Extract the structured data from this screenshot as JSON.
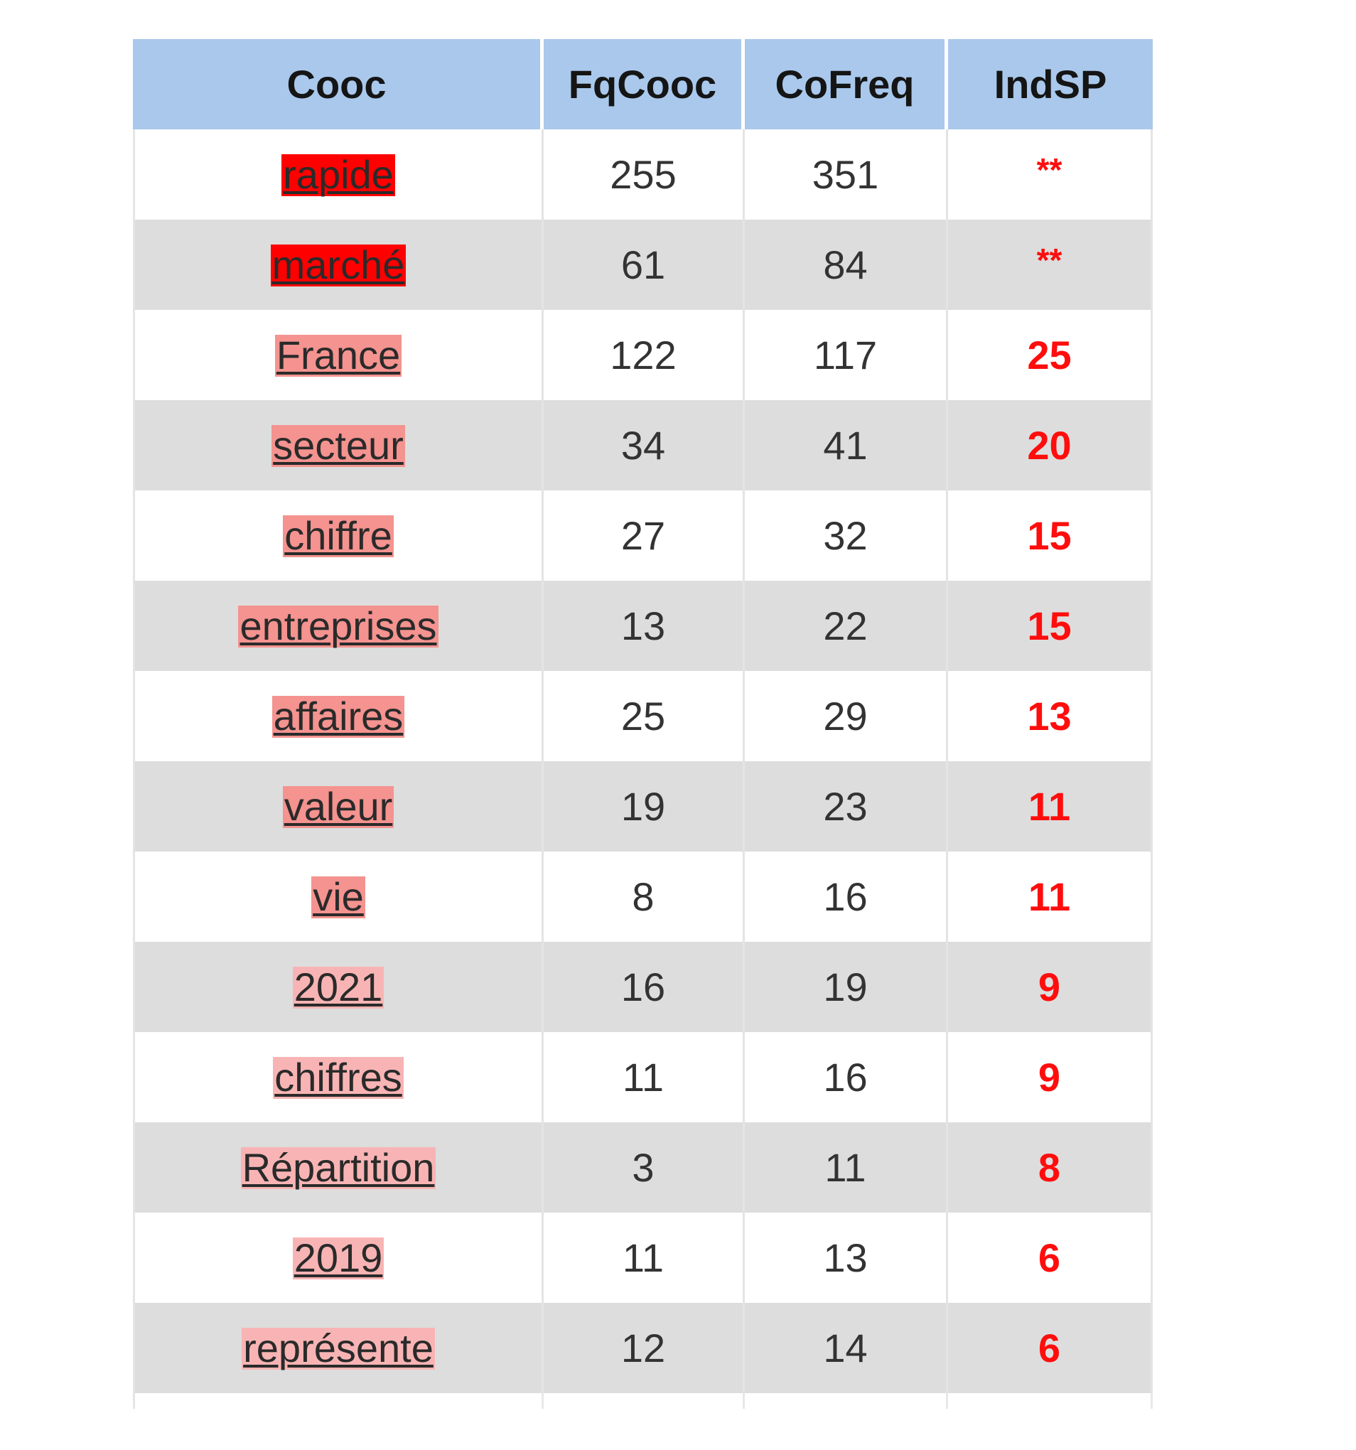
{
  "table": {
    "headers": [
      "Cooc",
      "FqCooc",
      "CoFreq",
      "IndSP"
    ],
    "rows": [
      {
        "cooc": "rapide",
        "fqcooc": "255",
        "cofreq": "351",
        "indsp": "**",
        "highlight": "#ff0000"
      },
      {
        "cooc": "marché",
        "fqcooc": "61",
        "cofreq": "84",
        "indsp": "**",
        "highlight": "#ff0000"
      },
      {
        "cooc": "France",
        "fqcooc": "122",
        "cofreq": "117",
        "indsp": "25",
        "highlight": "#f4938f"
      },
      {
        "cooc": "secteur",
        "fqcooc": "34",
        "cofreq": "41",
        "indsp": "20",
        "highlight": "#f4938f"
      },
      {
        "cooc": "chiffre",
        "fqcooc": "27",
        "cofreq": "32",
        "indsp": "15",
        "highlight": "#f4938f"
      },
      {
        "cooc": "entreprises",
        "fqcooc": "13",
        "cofreq": "22",
        "indsp": "15",
        "highlight": "#f4938f"
      },
      {
        "cooc": "affaires",
        "fqcooc": "25",
        "cofreq": "29",
        "indsp": "13",
        "highlight": "#f4938f"
      },
      {
        "cooc": "valeur",
        "fqcooc": "19",
        "cofreq": "23",
        "indsp": "11",
        "highlight": "#f4938f"
      },
      {
        "cooc": "vie",
        "fqcooc": "8",
        "cofreq": "16",
        "indsp": "11",
        "highlight": "#f4938f"
      },
      {
        "cooc": "2021",
        "fqcooc": "16",
        "cofreq": "19",
        "indsp": "9",
        "highlight": "#f8b4b4"
      },
      {
        "cooc": "chiffres",
        "fqcooc": "11",
        "cofreq": "16",
        "indsp": "9",
        "highlight": "#f8b4b4"
      },
      {
        "cooc": "Répartition",
        "fqcooc": "3",
        "cofreq": "11",
        "indsp": "8",
        "highlight": "#f8b4b4"
      },
      {
        "cooc": "2019",
        "fqcooc": "11",
        "cofreq": "13",
        "indsp": "6",
        "highlight": "#f8b4b4"
      },
      {
        "cooc": "représente",
        "fqcooc": "12",
        "cofreq": "14",
        "indsp": "6",
        "highlight": "#f8b4b4"
      }
    ]
  },
  "colors": {
    "header_bg": "#a9c8ec",
    "row_alt_bg": "#dddddd",
    "indsp_text": "#ff0d0d"
  }
}
